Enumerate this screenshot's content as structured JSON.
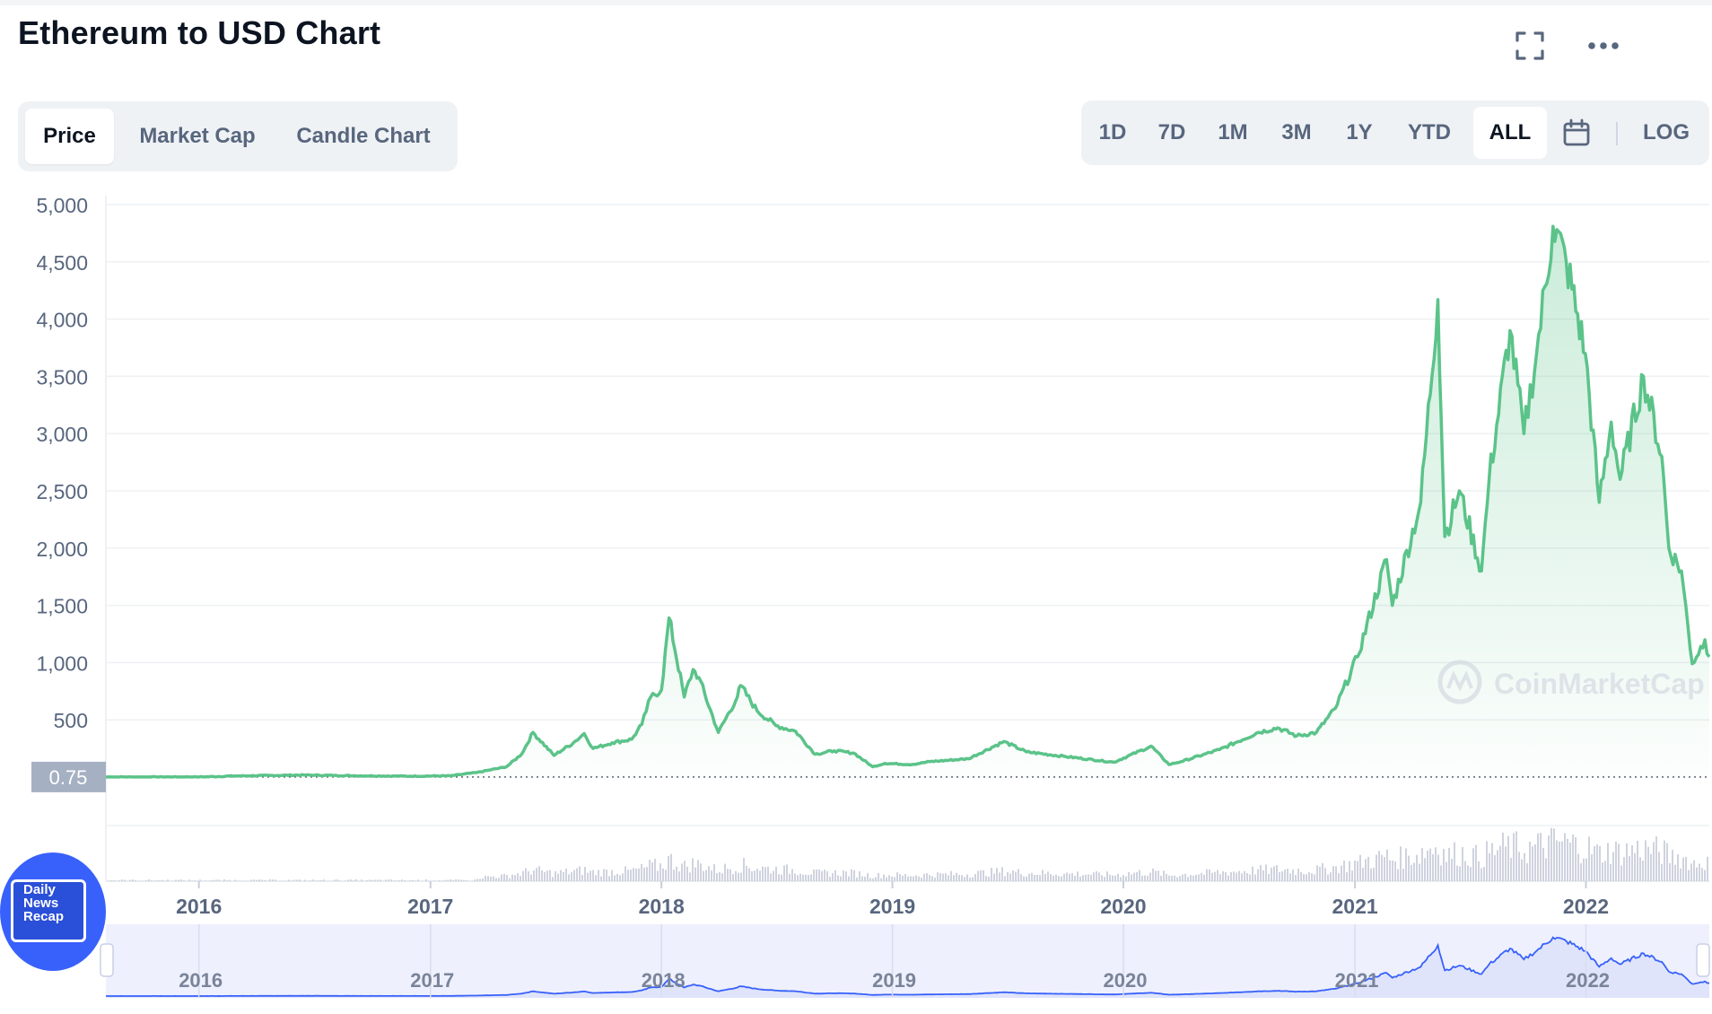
{
  "header": {
    "title": "Ethereum to USD Chart",
    "fullscreen_icon": "fullscreen-icon",
    "more_icon": "more-horizontal-icon"
  },
  "tabs": [
    {
      "label": "Price",
      "active": true
    },
    {
      "label": "Market Cap",
      "active": false
    },
    {
      "label": "Candle Chart",
      "active": false
    }
  ],
  "ranges": [
    {
      "label": "1D",
      "active": false
    },
    {
      "label": "7D",
      "active": false
    },
    {
      "label": "1M",
      "active": false
    },
    {
      "label": "3M",
      "active": false
    },
    {
      "label": "1Y",
      "active": false
    },
    {
      "label": "YTD",
      "active": false
    },
    {
      "label": "ALL",
      "active": true
    }
  ],
  "calendar_icon": "calendar-icon",
  "log_label": "LOG",
  "badge": {
    "lines": [
      "Daily",
      "News",
      "Recap"
    ],
    "icon": "film-icon"
  },
  "watermark": "CoinMarketCap",
  "colors": {
    "line": "#5bc389",
    "navigator_line": "#3861fb",
    "volume": "#cfd3de",
    "accent": "#3861fb"
  },
  "chart_data": {
    "type": "line",
    "title": "Ethereum to USD Chart",
    "xlabel": "",
    "ylabel": "",
    "yticks": [
      "5,000",
      "4,500",
      "4,000",
      "3,500",
      "3,000",
      "2,500",
      "2,000",
      "1,500",
      "1,000",
      "500"
    ],
    "ylim": [
      0,
      5000
    ],
    "xlim": [
      "2015-08-07",
      "2022-07-15"
    ],
    "xticks": [
      "2016",
      "2017",
      "2018",
      "2019",
      "2020",
      "2021",
      "2022"
    ],
    "baseline_label": "0.75",
    "grid": true,
    "series": [
      {
        "values": [
          [
            "2015-08-07",
            0.75
          ],
          [
            "2015-10-01",
            0.6
          ],
          [
            "2016-01-01",
            1
          ],
          [
            "2016-03-01",
            10
          ],
          [
            "2016-06-15",
            18
          ],
          [
            "2016-09-01",
            12
          ],
          [
            "2016-12-01",
            8
          ],
          [
            "2017-02-01",
            11
          ],
          [
            "2017-03-15",
            40
          ],
          [
            "2017-05-01",
            90
          ],
          [
            "2017-05-25",
            200
          ],
          [
            "2017-06-12",
            390
          ],
          [
            "2017-07-15",
            190
          ],
          [
            "2017-08-15",
            300
          ],
          [
            "2017-09-01",
            380
          ],
          [
            "2017-09-15",
            250
          ],
          [
            "2017-10-15",
            300
          ],
          [
            "2017-11-15",
            330
          ],
          [
            "2017-12-01",
            460
          ],
          [
            "2017-12-15",
            700
          ],
          [
            "2018-01-01",
            760
          ],
          [
            "2018-01-13",
            1390
          ],
          [
            "2018-02-06",
            700
          ],
          [
            "2018-02-20",
            940
          ],
          [
            "2018-03-01",
            870
          ],
          [
            "2018-04-01",
            390
          ],
          [
            "2018-05-01",
            700
          ],
          [
            "2018-05-06",
            800
          ],
          [
            "2018-06-01",
            580
          ],
          [
            "2018-07-01",
            450
          ],
          [
            "2018-08-01",
            400
          ],
          [
            "2018-09-01",
            200
          ],
          [
            "2018-10-01",
            230
          ],
          [
            "2018-11-01",
            210
          ],
          [
            "2018-12-01",
            90
          ],
          [
            "2018-12-20",
            120
          ],
          [
            "2019-02-01",
            110
          ],
          [
            "2019-03-01",
            135
          ],
          [
            "2019-05-01",
            160
          ],
          [
            "2019-06-26",
            310
          ],
          [
            "2019-08-01",
            220
          ],
          [
            "2019-10-01",
            180
          ],
          [
            "2019-12-17",
            130
          ],
          [
            "2020-02-14",
            270
          ],
          [
            "2020-03-13",
            110
          ],
          [
            "2020-04-01",
            135
          ],
          [
            "2020-06-01",
            240
          ],
          [
            "2020-08-01",
            390
          ],
          [
            "2020-09-01",
            430
          ],
          [
            "2020-10-01",
            360
          ],
          [
            "2020-11-01",
            390
          ],
          [
            "2020-12-01",
            600
          ],
          [
            "2021-01-05",
            1050
          ],
          [
            "2021-02-20",
            1900
          ],
          [
            "2021-03-01",
            1500
          ],
          [
            "2021-04-15",
            2400
          ],
          [
            "2021-05-12",
            4170
          ],
          [
            "2021-05-23",
            2100
          ],
          [
            "2021-06-15",
            2500
          ],
          [
            "2021-07-20",
            1800
          ],
          [
            "2021-08-01",
            2600
          ],
          [
            "2021-09-03",
            3900
          ],
          [
            "2021-09-25",
            3000
          ],
          [
            "2021-10-15",
            3700
          ],
          [
            "2021-11-10",
            4810
          ],
          [
            "2021-12-01",
            4500
          ],
          [
            "2021-12-31",
            3700
          ],
          [
            "2022-01-22",
            2400
          ],
          [
            "2022-02-10",
            3100
          ],
          [
            "2022-02-24",
            2600
          ],
          [
            "2022-04-02",
            3500
          ],
          [
            "2022-05-01",
            2800
          ],
          [
            "2022-05-12",
            2000
          ],
          [
            "2022-06-01",
            1800
          ],
          [
            "2022-06-18",
            990
          ],
          [
            "2022-07-08",
            1200
          ],
          [
            "2022-07-15",
            1050
          ]
        ]
      }
    ],
    "volume_series_shown": true,
    "navigator": {
      "shown": true,
      "xticks": [
        "2016",
        "2017",
        "2018",
        "2019",
        "2020",
        "2021",
        "2022"
      ]
    }
  }
}
